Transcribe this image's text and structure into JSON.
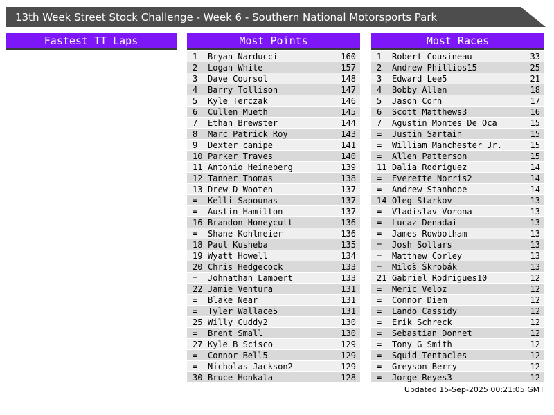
{
  "banner": {
    "title": "13th Week Street Stock Challenge - Week 6 - Southern National Motorsports Park"
  },
  "colors": {
    "banner_bg": "#4d4d4d",
    "section_header_bg": "#7d17f8",
    "section_header_border": "#3b3b3b",
    "row_light": "#efefef",
    "row_dark": "#d9d9d9"
  },
  "sections": [
    {
      "header": "Fastest TT Laps",
      "rows": []
    },
    {
      "header": "Most Points",
      "rows": [
        [
          "1",
          "Bryan Narducci",
          "160"
        ],
        [
          "2",
          "Logan White",
          "157"
        ],
        [
          "3",
          "Dave Coursol",
          "148"
        ],
        [
          "4",
          "Barry Tollison",
          "147"
        ],
        [
          "5",
          "Kyle Terczak",
          "146"
        ],
        [
          "6",
          "Cullen Mueth",
          "145"
        ],
        [
          "7",
          "Ethan Brewster",
          "144"
        ],
        [
          "8",
          "Marc Patrick Roy",
          "143"
        ],
        [
          "9",
          "Dexter canipe",
          "141"
        ],
        [
          "10",
          "Parker Traves",
          "140"
        ],
        [
          "11",
          "Antonio Heineberg",
          "139"
        ],
        [
          "12",
          "Tanner Thomas",
          "138"
        ],
        [
          "13",
          "Drew D Wooten",
          "137"
        ],
        [
          "=",
          "Kelli Sapounas",
          "137"
        ],
        [
          "=",
          "Austin Hamilton",
          "137"
        ],
        [
          "16",
          "Brandon Honeycutt",
          "136"
        ],
        [
          "=",
          "Shane Kohlmeier",
          "136"
        ],
        [
          "18",
          "Paul Kusheba",
          "135"
        ],
        [
          "19",
          "Wyatt Howell",
          "134"
        ],
        [
          "20",
          "Chris Hedgecock",
          "133"
        ],
        [
          "=",
          "Johnathan Lambert",
          "133"
        ],
        [
          "22",
          "Jamie Ventura",
          "131"
        ],
        [
          "=",
          "Blake Near",
          "131"
        ],
        [
          "=",
          "Tyler Wallace5",
          "131"
        ],
        [
          "25",
          "Willy Cuddy2",
          "130"
        ],
        [
          "=",
          "Brent Small",
          "130"
        ],
        [
          "27",
          "Kyle B Scisco",
          "129"
        ],
        [
          "=",
          "Connor Bell5",
          "129"
        ],
        [
          "=",
          "Nicholas Jackson2",
          "129"
        ],
        [
          "30",
          "Bruce Honkala",
          "128"
        ]
      ]
    },
    {
      "header": "Most Races",
      "rows": [
        [
          "1",
          "Robert Cousineau",
          "33"
        ],
        [
          "2",
          "Andrew Phillips15",
          "25"
        ],
        [
          "3",
          "Edward Lee5",
          "21"
        ],
        [
          "4",
          "Bobby Allen",
          "18"
        ],
        [
          "5",
          "Jason Corn",
          "17"
        ],
        [
          "6",
          "Scott Matthews3",
          "16"
        ],
        [
          "7",
          "Agustin Montes De Oca",
          "15"
        ],
        [
          "=",
          "Justin Sartain",
          "15"
        ],
        [
          "=",
          "William Manchester Jr.",
          "15"
        ],
        [
          "=",
          "Allen Patterson",
          "15"
        ],
        [
          "11",
          "Dalia Rodriguez",
          "14"
        ],
        [
          "=",
          "Everette Norris2",
          "14"
        ],
        [
          "=",
          "Andrew Stanhope",
          "14"
        ],
        [
          "14",
          "Oleg Starkov",
          "13"
        ],
        [
          "=",
          "Vladislav Vorona",
          "13"
        ],
        [
          "=",
          "Lucaz Denadai",
          "13"
        ],
        [
          "=",
          "James Rowbotham",
          "13"
        ],
        [
          "=",
          "Josh Sollars",
          "13"
        ],
        [
          "=",
          "Matthew Corley",
          "13"
        ],
        [
          "=",
          "Miloš Škrobák",
          "13"
        ],
        [
          "21",
          "Gabriel Rodrigues10",
          "12"
        ],
        [
          "=",
          "Meric Veloz",
          "12"
        ],
        [
          "=",
          "Connor Diem",
          "12"
        ],
        [
          "=",
          "Lando Cassidy",
          "12"
        ],
        [
          "=",
          "Erik Schreck",
          "12"
        ],
        [
          "=",
          "Sebastian Donnet",
          "12"
        ],
        [
          "=",
          "Tony G Smith",
          "12"
        ],
        [
          "=",
          "Squid Tentacles",
          "12"
        ],
        [
          "=",
          "Greyson Berry",
          "12"
        ],
        [
          "=",
          "Jorge Reyes3",
          "12"
        ]
      ]
    }
  ],
  "footer": {
    "updated": "Updated 15-Sep-2025 00:21:05 GMT"
  }
}
